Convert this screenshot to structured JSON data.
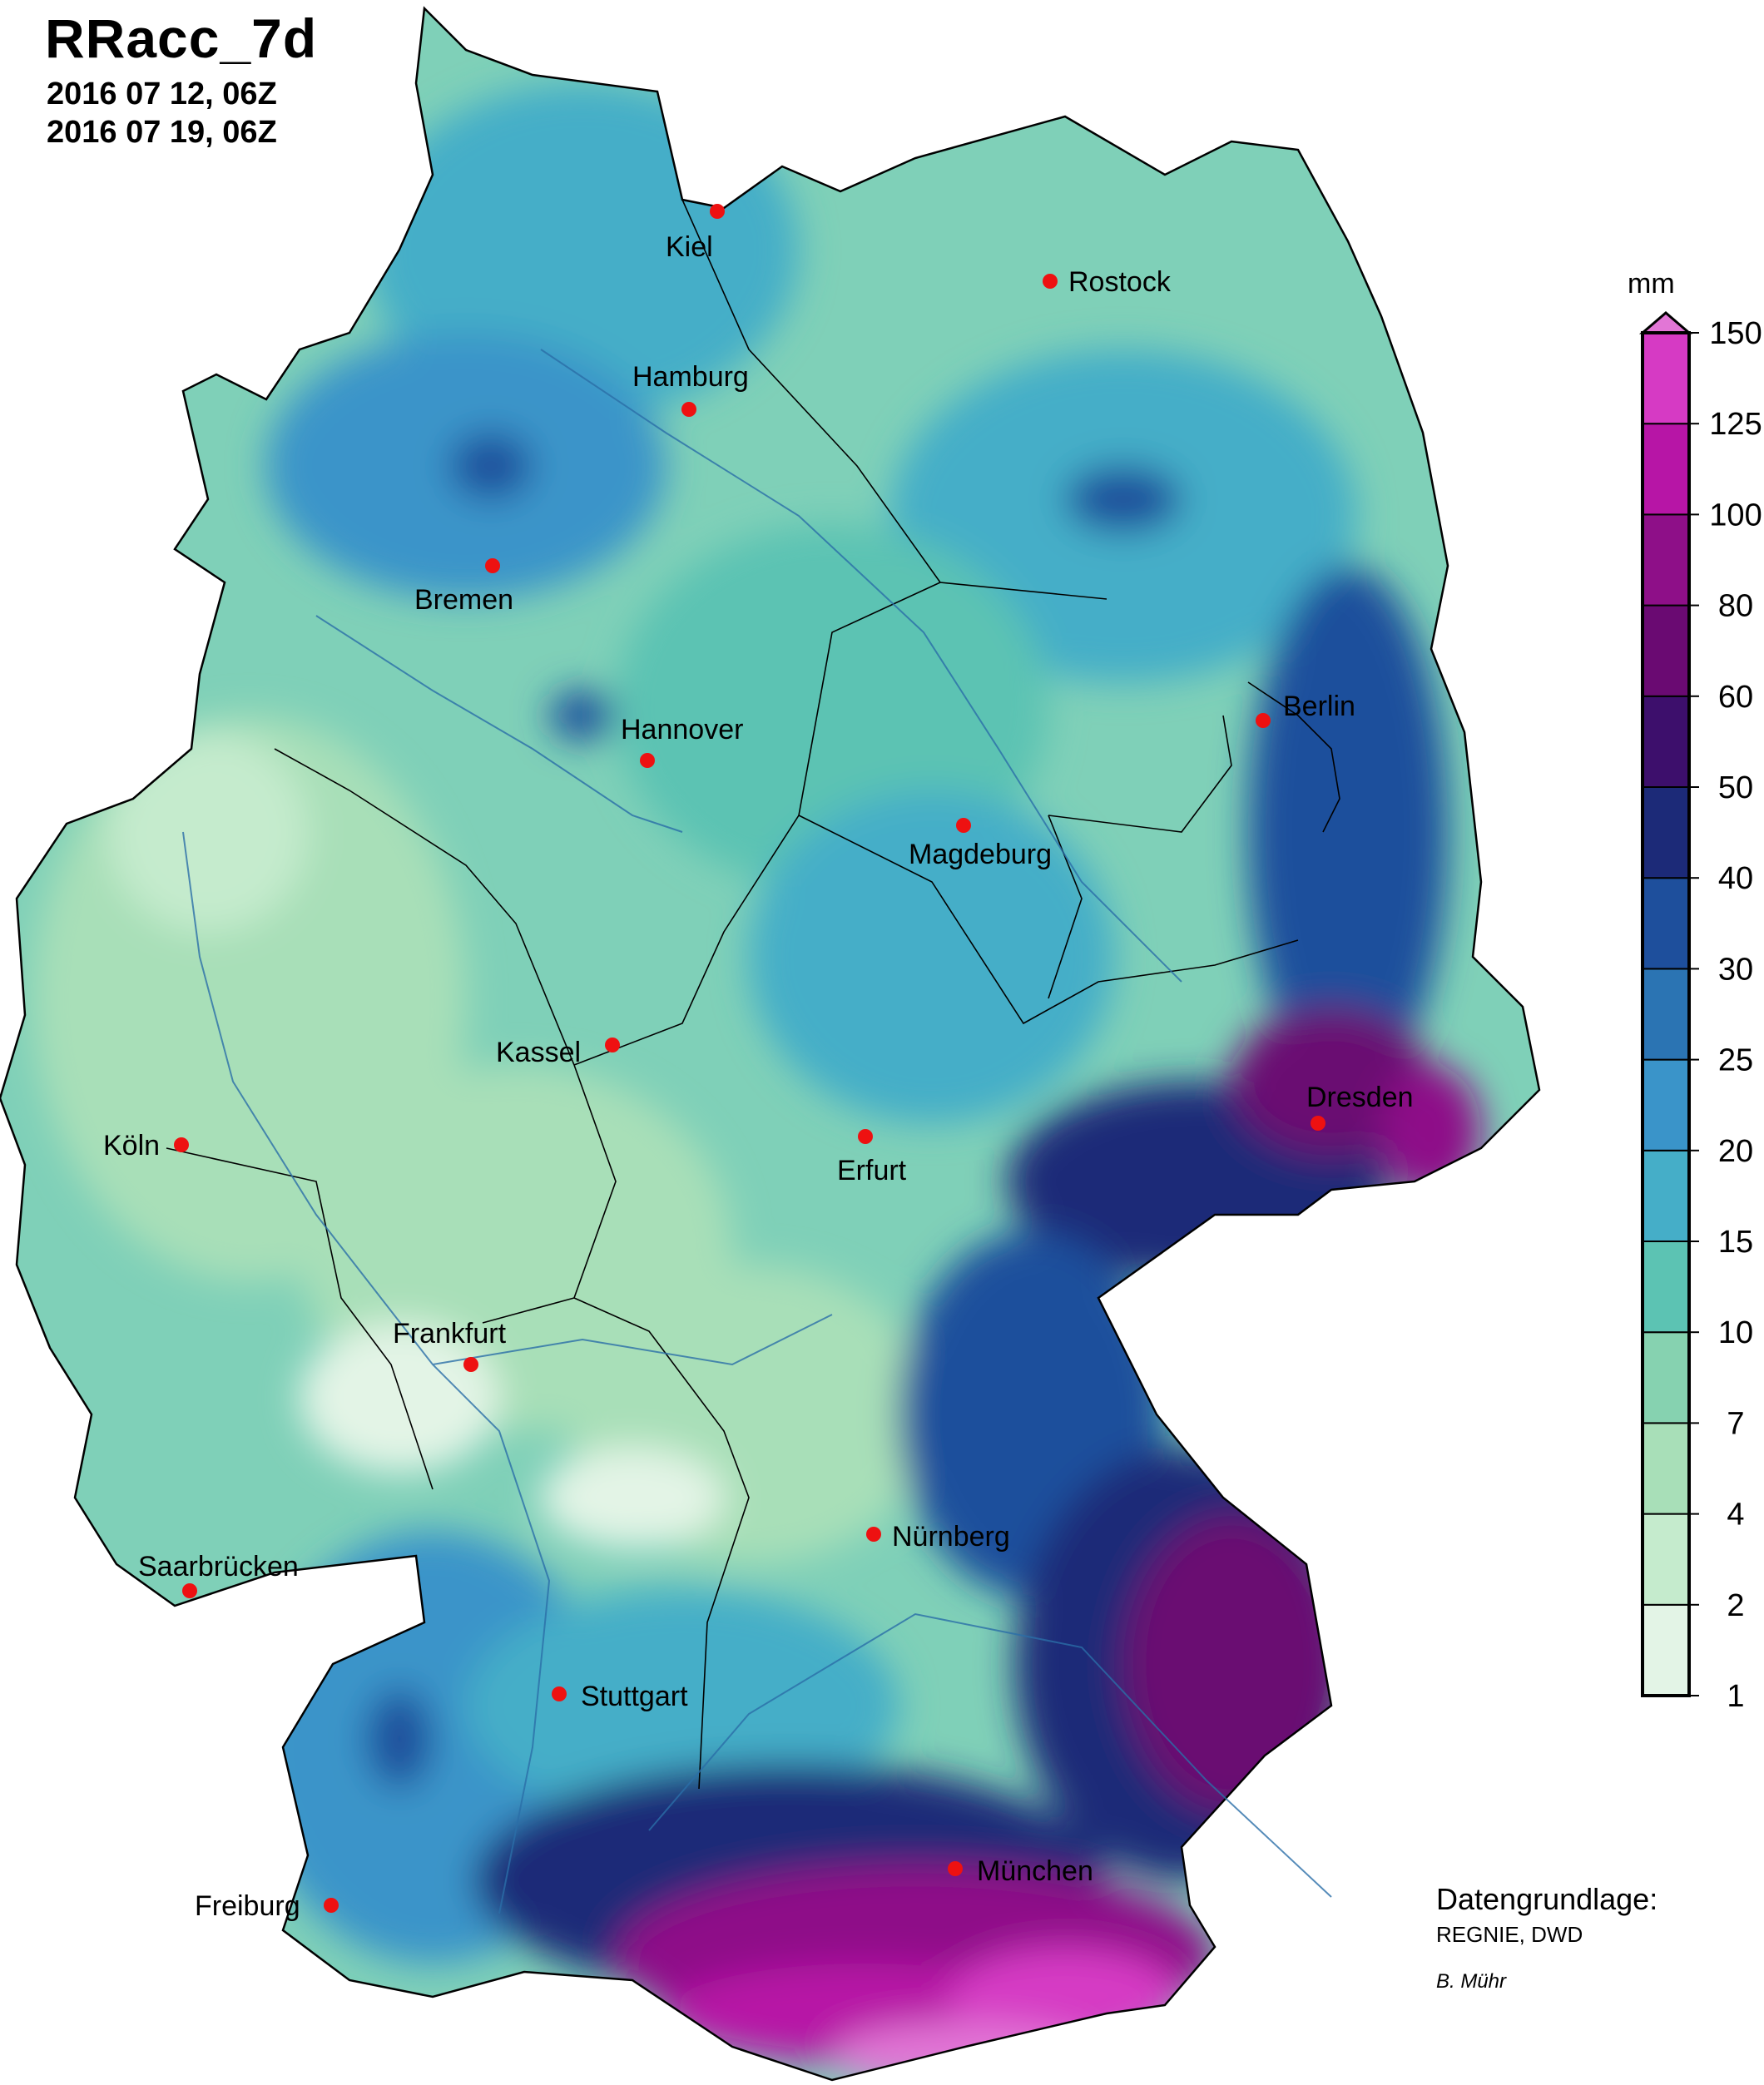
{
  "header": {
    "title": "RRacc_7d",
    "date_start": "2016 07 12, 06Z",
    "date_end": "2016 07 19, 06Z"
  },
  "colorbar": {
    "unit": "mm",
    "ticks": [
      "1",
      "2",
      "4",
      "7",
      "10",
      "15",
      "20",
      "25",
      "30",
      "40",
      "50",
      "60",
      "80",
      "100",
      "125",
      "150"
    ],
    "colors": [
      "#e3f4e6",
      "#c5ebcd",
      "#a8dfb8",
      "#86d2b0",
      "#5cc3b3",
      "#45aec8",
      "#3a94c9",
      "#2b74b3",
      "#1e4f9c",
      "#1c2a78",
      "#3d0f6c",
      "#6a0a72",
      "#8e0f88",
      "#b715a6",
      "#d63ac4"
    ],
    "extend_color": "#e276d6"
  },
  "cities": [
    {
      "name": "Kiel"
    },
    {
      "name": "Rostock"
    },
    {
      "name": "Hamburg"
    },
    {
      "name": "Bremen"
    },
    {
      "name": "Hannover"
    },
    {
      "name": "Berlin"
    },
    {
      "name": "Magdeburg"
    },
    {
      "name": "Kassel"
    },
    {
      "name": "Köln"
    },
    {
      "name": "Erfurt"
    },
    {
      "name": "Dresden"
    },
    {
      "name": "Frankfurt"
    },
    {
      "name": "Nürnberg"
    },
    {
      "name": "Saarbrücken"
    },
    {
      "name": "Stuttgart"
    },
    {
      "name": "München"
    },
    {
      "name": "Freiburg"
    }
  ],
  "credits": {
    "title": "Datengrundlage:",
    "source": "REGNIE, DWD",
    "author": "B. Mühr"
  }
}
